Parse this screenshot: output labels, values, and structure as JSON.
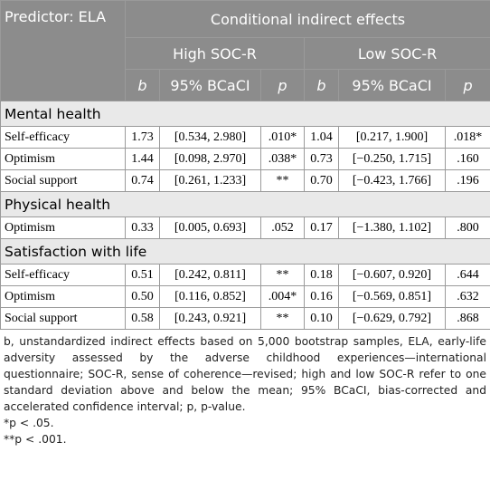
{
  "table": {
    "header": {
      "predictor": "Predictor: ELA",
      "group": "Conditional indirect effects",
      "subgroups": [
        "High SOC-R",
        "Low SOC-R"
      ],
      "columns": [
        "b",
        "95% BCaCI",
        "p",
        "b",
        "95% BCaCI",
        "p"
      ]
    },
    "sections": [
      {
        "title": "Mental health",
        "rows": [
          [
            "Self-efficacy",
            "1.73",
            "[0.534, 2.980]",
            ".010*",
            "1.04",
            "[0.217, 1.900]",
            ".018*"
          ],
          [
            "Optimism",
            "1.44",
            "[0.098, 2.970]",
            ".038*",
            "0.73",
            "[−0.250, 1.715]",
            ".160"
          ],
          [
            "Social support",
            "0.74",
            "[0.261, 1.233]",
            "**",
            "0.70",
            "[−0.423, 1.766]",
            ".196"
          ]
        ]
      },
      {
        "title": "Physical health",
        "rows": [
          [
            "Optimism",
            "0.33",
            "[0.005, 0.693]",
            ".052",
            "0.17",
            "[−1.380, 1.102]",
            ".800"
          ]
        ]
      },
      {
        "title": "Satisfaction with life",
        "rows": [
          [
            "Self-efficacy",
            "0.51",
            "[0.242, 0.811]",
            "**",
            "0.18",
            "[−0.607, 0.920]",
            ".644"
          ],
          [
            "Optimism",
            "0.50",
            "[0.116, 0.852]",
            ".004*",
            "0.16",
            "[−0.569, 0.851]",
            ".632"
          ],
          [
            "Social support",
            "0.58",
            "[0.243, 0.921]",
            "**",
            "0.10",
            "[−0.629, 0.792]",
            ".868"
          ]
        ]
      }
    ]
  },
  "footnotes": [
    "b, unstandardized indirect effects based on 5,000 bootstrap samples, ELA, early-life adversity assessed by the adverse childhood experiences—international questionnaire; SOC-R, sense of coherence—revised; high and low SOC-R refer to one standard deviation above and below the mean; 95% BCaCI, bias-corrected and accelerated confidence interval; p, p-value.",
    "*p < .05.",
    "**p < .001."
  ]
}
